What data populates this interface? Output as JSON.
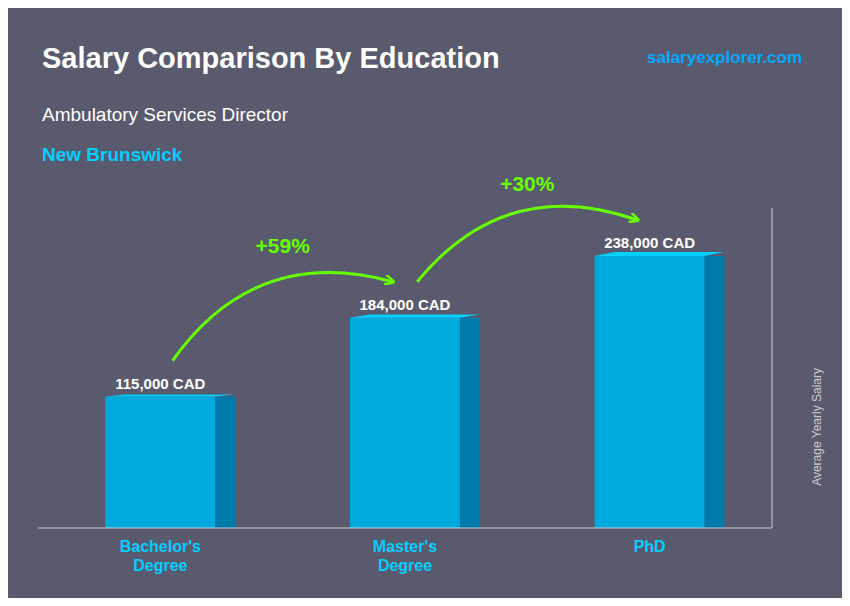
{
  "chart_data": {
    "type": "bar",
    "title": "Salary Comparison By Education",
    "subtitle": "Ambulatory Services Director",
    "annotations": [
      {
        "text": "New Brunswick",
        "color": "#00cfff"
      },
      {
        "text": "salaryexplorer.com",
        "color": "#00aaff"
      },
      {
        "text": "+59%",
        "from": "Bachelor's\nDegree",
        "to": "Master's\nDegree",
        "color": "#66ff00"
      },
      {
        "text": "+30%",
        "from": "Master's\nDegree",
        "to": "PhD",
        "color": "#66ff00"
      }
    ],
    "ylabel": "Average Yearly Salary",
    "categories": [
      "Bachelor's\nDegree",
      "Master's\nDegree",
      "PhD"
    ],
    "values": [
      115000,
      184000,
      238000
    ],
    "value_labels": [
      "115,000 CAD",
      "184,000 CAD",
      "238,000 CAD"
    ],
    "data_labels": true,
    "color": "#00aadd",
    "ylim": [
      0,
      280000
    ],
    "tick_labels": "x",
    "grid": false
  }
}
